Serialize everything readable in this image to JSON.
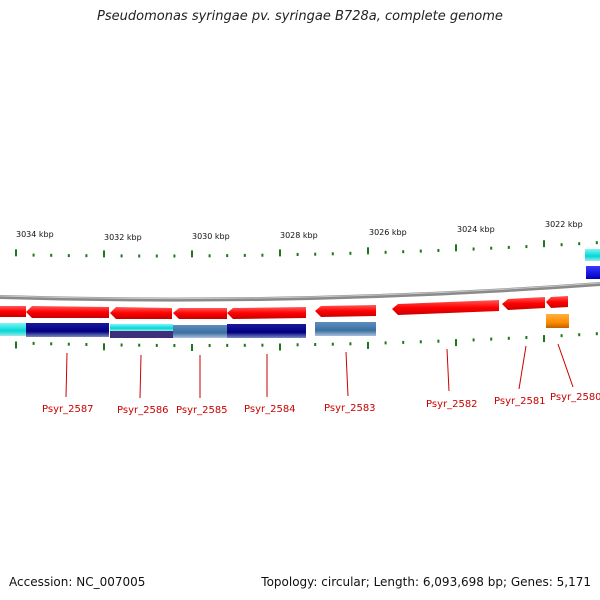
{
  "title": "Pseudomonas syringae pv. syringae B728a, complete genome",
  "footer": {
    "accession_label": "Accession:",
    "accession": "NC_007005",
    "topology_label": "Topology:",
    "topology": "circular",
    "length_label": "Length:",
    "length": "6,093,698 bp",
    "genes_label": "Genes:",
    "genes": "5,171"
  },
  "kbp_labels": [
    "3034 kbp",
    "3032 kbp",
    "3030 kbp",
    "3028 kbp",
    "3026 kbp",
    "3024 kbp",
    "3022 kbp"
  ],
  "genes": [
    {
      "name": "Psyr_2587"
    },
    {
      "name": "Psyr_2586"
    },
    {
      "name": "Psyr_2585"
    },
    {
      "name": "Psyr_2584"
    },
    {
      "name": "Psyr_2583"
    },
    {
      "name": "Psyr_2582"
    },
    {
      "name": "Psyr_2581"
    },
    {
      "name": "Psyr_2580"
    }
  ],
  "colors": {
    "gene_arrow": "#ff0000",
    "backbone": "#808080",
    "tick": "#1a7a1a",
    "label": "#cc0000",
    "dark_blue": "#000080",
    "steel_blue": "#4682b4",
    "cyan": "#00e5e5",
    "orange": "#ff8c00",
    "blue": "#0000ff"
  }
}
